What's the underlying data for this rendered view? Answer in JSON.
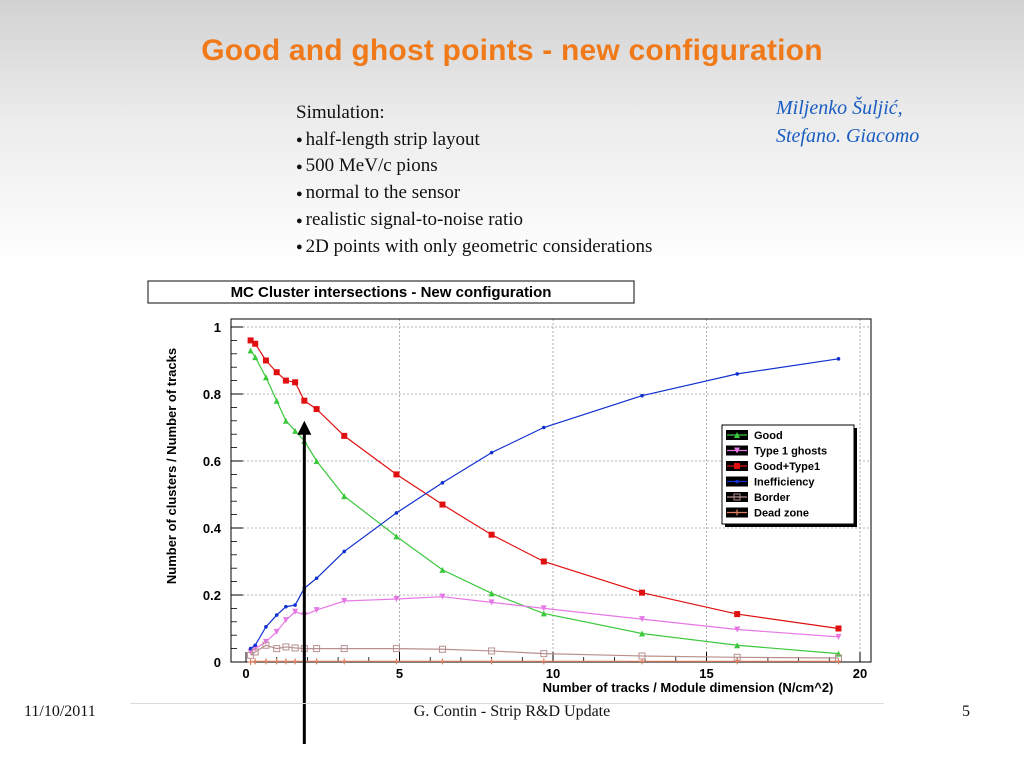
{
  "slide": {
    "title": "Good and ghost points - new  configuration",
    "simulation_heading": "Simulation:",
    "bullet_glyph": "●",
    "bullets": [
      "half-length strip layout",
      "500 MeV/c pions",
      "normal to the sensor",
      "realistic signal-to-noise ratio",
      "2D points with only geometric considerations"
    ],
    "authors": [
      "Miljenko Šuljić,",
      "Stefano. Giacomo"
    ],
    "footer_date": "11/10/2011",
    "footer_center": "G. Contin - Strip R&D Update",
    "page_number": "5",
    "colors": {
      "title": "#f07a1a",
      "authors": "#1a5cc2"
    }
  },
  "chart_data": {
    "type": "line",
    "title": "MC Cluster intersections - New configuration",
    "xlabel": "Number of tracks / Module dimension (N/cm^2)",
    "ylabel": "Number of clusters / Number of tracks",
    "xlim": [
      0,
      20
    ],
    "ylim": [
      0,
      1
    ],
    "xticks": [
      0,
      5,
      10,
      15,
      20
    ],
    "yticks": [
      0,
      0.2,
      0.4,
      0.6,
      0.8,
      1
    ],
    "grid": true,
    "legend_position": "right",
    "x": [
      0.15,
      0.3,
      0.65,
      1.0,
      1.3,
      1.6,
      1.9,
      2.3,
      3.2,
      4.9,
      6.4,
      8.0,
      9.7,
      12.9,
      16.0,
      19.3
    ],
    "series": [
      {
        "name": "Good",
        "color": "#3cc83c",
        "marker": "triangle",
        "values": [
          0.93,
          0.91,
          0.85,
          0.78,
          0.72,
          0.69,
          0.66,
          0.6,
          0.495,
          0.375,
          0.275,
          0.205,
          0.145,
          0.085,
          0.05,
          0.025
        ]
      },
      {
        "name": "Type 1 ghosts",
        "color": "#e678e6",
        "marker": "triangle-down",
        "values": [
          0.03,
          0.04,
          0.06,
          0.09,
          0.125,
          0.15,
          0.14,
          0.155,
          0.182,
          0.188,
          0.195,
          0.178,
          0.16,
          0.128,
          0.097,
          0.075
        ]
      },
      {
        "name": "Good+Type1",
        "color": "#e01010",
        "marker": "square",
        "values": [
          0.96,
          0.95,
          0.9,
          0.865,
          0.84,
          0.835,
          0.78,
          0.755,
          0.675,
          0.56,
          0.47,
          0.38,
          0.3,
          0.207,
          0.143,
          0.1
        ]
      },
      {
        "name": "Inefficiency",
        "color": "#1030d0",
        "marker": "dot",
        "values": [
          0.04,
          0.05,
          0.105,
          0.14,
          0.165,
          0.17,
          0.22,
          0.25,
          0.33,
          0.445,
          0.535,
          0.625,
          0.7,
          0.795,
          0.86,
          0.905
        ]
      },
      {
        "name": "Border",
        "color": "#b89090",
        "marker": "open-square",
        "values": [
          0.02,
          0.03,
          0.05,
          0.04,
          0.045,
          0.042,
          0.04,
          0.04,
          0.04,
          0.04,
          0.038,
          0.033,
          0.025,
          0.018,
          0.014,
          0.012
        ]
      },
      {
        "name": "Dead zone",
        "color": "#e08060",
        "marker": "cross",
        "values": [
          0.0,
          0.002,
          0.002,
          0.002,
          0.002,
          0.002,
          0.002,
          0.002,
          0.002,
          0.002,
          0.002,
          0.002,
          0.002,
          0.002,
          0.002,
          0.002
        ]
      }
    ],
    "annotation_arrow": {
      "x": 1.9,
      "y_tip": 0.72,
      "label": ""
    }
  }
}
